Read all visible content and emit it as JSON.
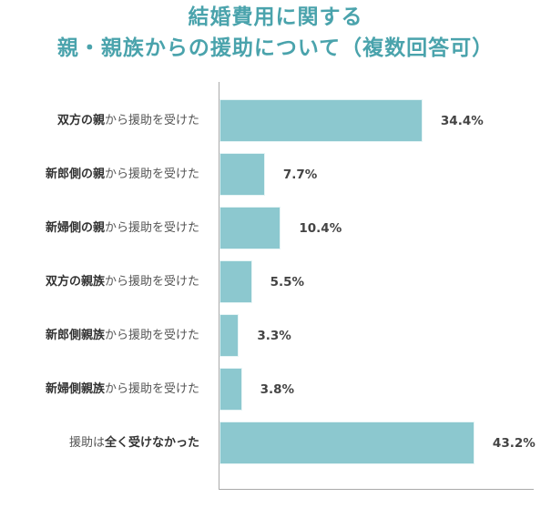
{
  "chart_data": {
    "type": "bar",
    "orientation": "horizontal",
    "title": "結婚費用に関する 親・親族からの援助について（複数回答可）",
    "title_lines": [
      "結婚費用に関する",
      "親・親族からの援助について（複数回答可）"
    ],
    "categories": [
      "双方の親から援助を受けた",
      "新郎側の親から援助を受けた",
      "新婦側の親から援助を受けた",
      "双方の親族から援助を受けた",
      "新郎側親族から援助を受けた",
      "新婦側親族から援助を受けた",
      "援助は全く受けなかった"
    ],
    "values": [
      34.4,
      7.7,
      10.4,
      5.5,
      3.3,
      3.8,
      43.2
    ],
    "value_labels": [
      "34.4%",
      "7.7%",
      "10.4%",
      "5.5%",
      "3.3%",
      "3.8%",
      "43.2%"
    ],
    "unit": "%",
    "xlabel": "",
    "ylabel": "",
    "grid": false,
    "legend": null,
    "colors": {
      "bar": "#8cc8cf",
      "title": "#4aa3ac",
      "axis": "#aaaaaa",
      "text": "#444444"
    }
  },
  "rows": [
    {
      "bold": "双方の親",
      "normal": "から援助を受けた",
      "bold_first": true,
      "value": 34.4,
      "label": "34.4%"
    },
    {
      "bold": "新郎側の親",
      "normal": "から援助を受けた",
      "bold_first": true,
      "value": 7.7,
      "label": "7.7%"
    },
    {
      "bold": "新婦側の親",
      "normal": "から援助を受けた",
      "bold_first": true,
      "value": 10.4,
      "label": "10.4%"
    },
    {
      "bold": "双方の親族",
      "normal": "から援助を受けた",
      "bold_first": true,
      "value": 5.5,
      "label": "5.5%"
    },
    {
      "bold": "新郎側親族",
      "normal": "から援助を受けた",
      "bold_first": true,
      "value": 3.3,
      "label": "3.3%"
    },
    {
      "bold": "新婦側親族",
      "normal": "から援助を受けた",
      "bold_first": true,
      "value": 3.8,
      "label": "3.8%"
    },
    {
      "bold": "全く受けなかった",
      "normal": "援助は",
      "bold_first": false,
      "value": 43.2,
      "label": "43.2%"
    }
  ]
}
